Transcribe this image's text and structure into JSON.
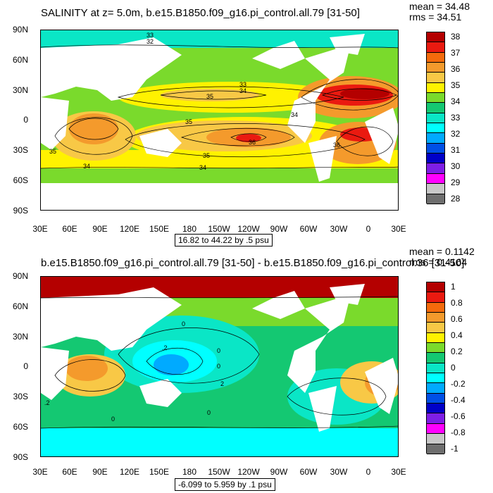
{
  "panels": [
    {
      "title": "SALINITY at z=   5.0m, b.e15.B1850.f09_g16.pi_control.all.79 [31-50]",
      "mean": "mean = 34.48",
      "rms": "rms = 34.51",
      "range_label": "16.82 to 44.22 by .5 psu",
      "contour_labels": [
        "33",
        "32",
        "33",
        "34",
        "35",
        "35",
        "36",
        "35",
        "36",
        "34",
        "34",
        "35",
        "34"
      ],
      "colorbar": {
        "labels": [
          "38",
          "37",
          "36",
          "35",
          "34",
          "33",
          "32",
          "31",
          "30",
          "29",
          "28"
        ],
        "colors": [
          "#b40000",
          "#ea1a10",
          "#f46a0c",
          "#f49a2c",
          "#f8c846",
          "#fff200",
          "#7ada2c",
          "#14c872",
          "#0ae6c6",
          "#00ffff",
          "#00aaff",
          "#0050e6",
          "#0000c8",
          "#7e1ee6",
          "#ff00ff",
          "#c8c8c8",
          "#6e6e6e"
        ]
      }
    },
    {
      "title": "b.e15.B1850.f09_g16.pi_control.all.79 [31-50] - b.e15.B1850.f09_g16.pi_control.36 [31-50]",
      "mean": "mean = 0.1142",
      "rms": "rms = 0.4164",
      "range_label": "-6.099 to 5.959 by .1 psu",
      "contour_labels": [
        "0",
        "0",
        ".2",
        "0",
        "2",
        "0",
        ".2",
        "0"
      ],
      "colorbar": {
        "labels": [
          "1",
          "0.8",
          "0.6",
          "0.4",
          "0.2",
          "0",
          "-0.2",
          "-0.4",
          "-0.6",
          "-0.8",
          "-1"
        ],
        "colors": [
          "#b40000",
          "#ea1a10",
          "#f46a0c",
          "#f49a2c",
          "#f8c846",
          "#fff200",
          "#7ada2c",
          "#14c872",
          "#0ae6c6",
          "#00ffff",
          "#00aaff",
          "#0050e6",
          "#0000c8",
          "#7e1ee6",
          "#ff00ff",
          "#c8c8c8",
          "#6e6e6e"
        ]
      }
    }
  ],
  "axes": {
    "y_ticks": [
      "90N",
      "60N",
      "30N",
      "0",
      "30S",
      "60S",
      "90S"
    ],
    "x_ticks": [
      "30E",
      "60E",
      "90E",
      "120E",
      "150E",
      "180",
      "150W",
      "120W",
      "90W",
      "60W",
      "30W",
      "0",
      "30E"
    ]
  },
  "chart_data": [
    {
      "type": "heatmap",
      "title": "SALINITY at z=   5.0m, b.e15.B1850.f09_g16.pi_control.all.79 [31-50]",
      "units": "psu",
      "x_ticks": [
        "30E",
        "60E",
        "90E",
        "120E",
        "150E",
        "180",
        "150W",
        "120W",
        "90W",
        "60W",
        "30W",
        "0",
        "30E"
      ],
      "y_ticks": [
        "90N",
        "60N",
        "30N",
        "0",
        "30S",
        "60S",
        "90S"
      ],
      "colorbar_levels": [
        28,
        29,
        30,
        31,
        32,
        33,
        34,
        35,
        36,
        37,
        38
      ],
      "contour_interval": 0.5,
      "range": [
        16.82,
        44.22
      ],
      "mean": 34.48,
      "rms": 34.51
    },
    {
      "type": "heatmap",
      "title": "b.e15.B1850.f09_g16.pi_control.all.79 [31-50] - b.e15.B1850.f09_g16.pi_control.36 [31-50]",
      "units": "psu",
      "x_ticks": [
        "30E",
        "60E",
        "90E",
        "120E",
        "150E",
        "180",
        "150W",
        "120W",
        "90W",
        "60W",
        "30W",
        "0",
        "30E"
      ],
      "y_ticks": [
        "90N",
        "60N",
        "30N",
        "0",
        "30S",
        "60S",
        "90S"
      ],
      "colorbar_levels": [
        -1,
        -0.8,
        -0.6,
        -0.4,
        -0.2,
        0,
        0.2,
        0.4,
        0.6,
        0.8,
        1
      ],
      "contour_interval": 0.1,
      "range": [
        -6.099,
        5.959
      ],
      "mean": 0.1142,
      "rms": 0.4164
    }
  ]
}
